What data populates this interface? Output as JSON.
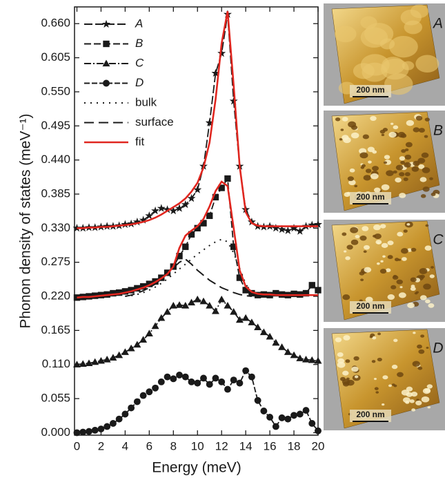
{
  "chart_data": {
    "type": "line",
    "xlabel": "Energy (meV)",
    "ylabel": "Phonon density of states (meV⁻¹)",
    "xlim": [
      -0.2,
      20
    ],
    "ylim": [
      -0.004,
      0.687
    ],
    "xticks": [
      0,
      2,
      4,
      6,
      8,
      10,
      12,
      14,
      16,
      18,
      20
    ],
    "yticks": [
      {
        "value": 0,
        "label": "0.000"
      },
      {
        "value": 0.055,
        "label": "0.055"
      },
      {
        "value": 0.11,
        "label": "0.110"
      },
      {
        "value": 0.165,
        "label": "0.165"
      },
      {
        "value": 0.22,
        "label": "0.220"
      },
      {
        "value": 0.275,
        "label": "0.275"
      },
      {
        "value": 0.33,
        "label": "0.330"
      },
      {
        "value": 0.385,
        "label": "0.385"
      },
      {
        "value": 0.44,
        "label": "0.440"
      },
      {
        "value": 0.495,
        "label": "0.495"
      },
      {
        "value": 0.55,
        "label": "0.550"
      },
      {
        "value": 0.605,
        "label": "0.605"
      },
      {
        "value": 0.66,
        "label": "0.660"
      }
    ],
    "x": [
      0,
      0.5,
      1,
      1.5,
      2,
      2.5,
      3,
      3.5,
      4,
      4.5,
      5,
      5.5,
      6,
      6.5,
      7,
      7.5,
      8,
      8.5,
      9,
      9.5,
      10,
      10.5,
      11,
      11.5,
      12,
      12.5,
      13,
      13.5,
      14,
      14.5,
      15,
      15.5,
      16,
      16.5,
      17,
      17.5,
      18,
      18.5,
      19,
      19.5,
      20
    ],
    "series": [
      {
        "name": "A",
        "color": "#1a1a1a",
        "marker": "star",
        "dash": "12 4",
        "values": [
          0.33,
          0.33,
          0.331,
          0.331,
          0.332,
          0.333,
          0.333,
          0.334,
          0.336,
          0.337,
          0.34,
          0.343,
          0.35,
          0.358,
          0.362,
          0.36,
          0.358,
          0.362,
          0.368,
          0.378,
          0.392,
          0.43,
          0.5,
          0.58,
          0.612,
          0.675,
          0.535,
          0.43,
          0.36,
          0.34,
          0.333,
          0.332,
          0.333,
          0.33,
          0.328,
          0.326,
          0.33,
          0.325,
          0.333,
          0.335,
          0.336
        ]
      },
      {
        "name": "B",
        "color": "#1a1a1a",
        "marker": "square",
        "dash": "10 4",
        "values": [
          0.218,
          0.219,
          0.22,
          0.221,
          0.222,
          0.223,
          0.225,
          0.226,
          0.228,
          0.23,
          0.233,
          0.236,
          0.24,
          0.244,
          0.25,
          0.258,
          0.268,
          0.285,
          0.3,
          0.32,
          0.33,
          0.338,
          0.35,
          0.38,
          0.395,
          0.41,
          0.3,
          0.25,
          0.23,
          0.225,
          0.222,
          0.223,
          0.222,
          0.225,
          0.223,
          0.222,
          0.224,
          0.223,
          0.225,
          0.238,
          0.23
        ]
      },
      {
        "name": "C",
        "color": "#1a1a1a",
        "marker": "triangle",
        "dash": "10 3 2 3",
        "values": [
          0.11,
          0.111,
          0.112,
          0.114,
          0.116,
          0.118,
          0.121,
          0.125,
          0.13,
          0.136,
          0.142,
          0.15,
          0.16,
          0.172,
          0.185,
          0.195,
          0.205,
          0.206,
          0.205,
          0.21,
          0.215,
          0.212,
          0.205,
          0.196,
          0.215,
          0.205,
          0.195,
          0.182,
          0.185,
          0.178,
          0.17,
          0.162,
          0.155,
          0.145,
          0.138,
          0.13,
          0.125,
          0.12,
          0.118,
          0.117,
          0.116
        ]
      },
      {
        "name": "D",
        "color": "#1a1a1a",
        "marker": "circle",
        "dash": "8 3",
        "values": [
          0.0,
          0.001,
          0.002,
          0.004,
          0.006,
          0.01,
          0.015,
          0.022,
          0.03,
          0.04,
          0.05,
          0.06,
          0.066,
          0.072,
          0.082,
          0.09,
          0.087,
          0.093,
          0.09,
          0.082,
          0.08,
          0.088,
          0.078,
          0.088,
          0.082,
          0.07,
          0.085,
          0.08,
          0.1,
          0.09,
          0.052,
          0.035,
          0.025,
          0.01,
          0.024,
          0.022,
          0.028,
          0.03,
          0.036,
          0.015,
          0.003
        ]
      },
      {
        "name": "bulk",
        "color": "#1a1a1a",
        "dash": "2 7",
        "values": [
          null,
          null,
          null,
          null,
          null,
          null,
          null,
          null,
          0.22,
          0.221,
          0.223,
          0.226,
          0.23,
          0.235,
          0.241,
          0.248,
          0.256,
          0.264,
          0.272,
          0.28,
          0.288,
          0.295,
          0.302,
          0.308,
          0.312,
          0.308,
          0.29,
          0.265,
          0.24,
          0.226,
          0.222,
          null,
          null,
          null,
          null,
          null,
          null,
          null,
          null,
          null,
          null
        ]
      },
      {
        "name": "surface",
        "color": "#1a1a1a",
        "dash": "14 7",
        "values": [
          null,
          null,
          null,
          null,
          null,
          null,
          null,
          null,
          0.22,
          0.222,
          0.225,
          0.229,
          0.234,
          0.24,
          0.248,
          0.257,
          0.266,
          0.275,
          0.28,
          0.272,
          0.262,
          0.254,
          0.246,
          0.24,
          0.234,
          0.23,
          0.226,
          0.223,
          0.221,
          0.22,
          null,
          null,
          null,
          null,
          null,
          null,
          null,
          null,
          null,
          null,
          null
        ]
      },
      {
        "name": "fit",
        "color": "#e0261f",
        "dash": "none",
        "values": [
          [
            0.33,
            0.33,
            0.331,
            0.331,
            0.332,
            0.332,
            0.333,
            0.334,
            0.335,
            0.336,
            0.338,
            0.34,
            0.343,
            0.347,
            0.352,
            0.358,
            0.364,
            0.37,
            0.378,
            0.389,
            0.403,
            0.428,
            0.468,
            0.538,
            0.628,
            0.68,
            0.56,
            0.43,
            0.356,
            0.338,
            0.334,
            0.333,
            0.333,
            0.333,
            0.333,
            0.333,
            0.333,
            0.333,
            0.333,
            0.333,
            0.333
          ],
          [
            0.218,
            0.219,
            0.219,
            0.22,
            0.221,
            0.222,
            0.223,
            0.224,
            0.226,
            0.228,
            0.231,
            0.234,
            0.238,
            0.243,
            0.249,
            0.256,
            0.268,
            0.298,
            0.318,
            0.326,
            0.333,
            0.345,
            0.365,
            0.39,
            0.405,
            0.398,
            0.33,
            0.262,
            0.236,
            0.227,
            0.224,
            0.223,
            0.223,
            0.222,
            0.222,
            0.222,
            0.222,
            0.222,
            0.222,
            0.222,
            0.222
          ]
        ]
      }
    ],
    "images": [
      {
        "label": "A",
        "scale": "200 nm"
      },
      {
        "label": "B",
        "scale": "200 nm"
      },
      {
        "label": "C",
        "scale": "200 nm"
      },
      {
        "label": "D",
        "scale": "200 nm"
      }
    ]
  }
}
